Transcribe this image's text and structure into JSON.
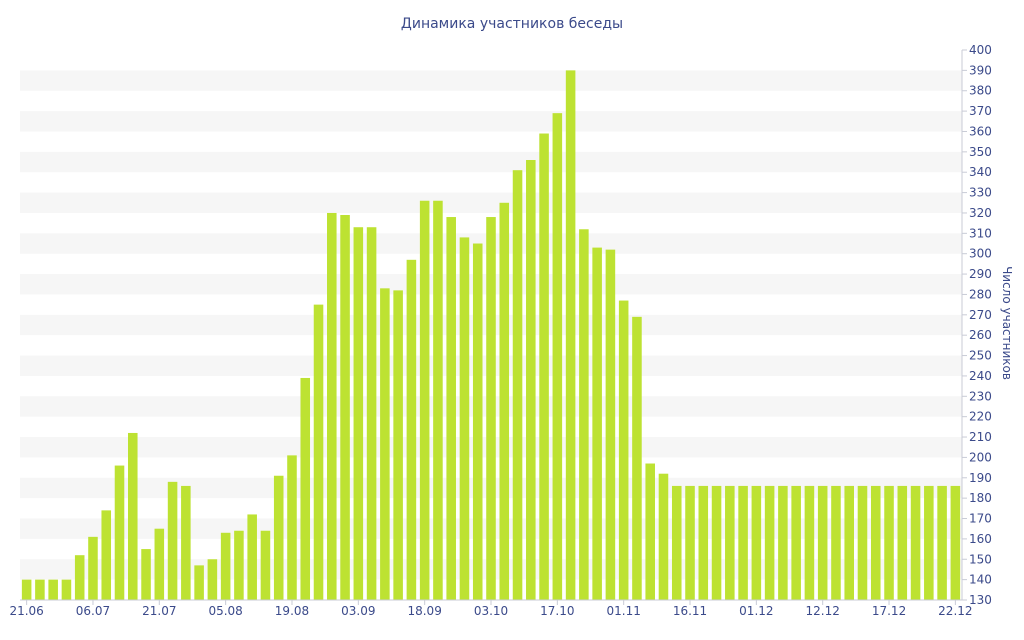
{
  "chart_data": {
    "type": "bar",
    "title": "Динамика участников беседы",
    "ylabel": "Число участников",
    "xlabel": "",
    "ylim": [
      130,
      400
    ],
    "yticks": [
      130,
      140,
      150,
      160,
      170,
      180,
      190,
      200,
      210,
      220,
      230,
      240,
      250,
      260,
      270,
      280,
      290,
      300,
      310,
      320,
      330,
      340,
      350,
      360,
      370,
      380,
      390,
      400
    ],
    "grid": "horizontal bands",
    "bar_color": "#bde232",
    "band_color": "#f6f6f6",
    "text_color": "#3b4a8a",
    "xtick_labels": [
      {
        "index": 0,
        "label": "21.06"
      },
      {
        "index": 5,
        "label": "06.07"
      },
      {
        "index": 10,
        "label": "21.07"
      },
      {
        "index": 15,
        "label": "05.08"
      },
      {
        "index": 20,
        "label": "19.08"
      },
      {
        "index": 25,
        "label": "03.09"
      },
      {
        "index": 30,
        "label": "18.09"
      },
      {
        "index": 35,
        "label": "03.10"
      },
      {
        "index": 40,
        "label": "17.10"
      },
      {
        "index": 45,
        "label": "01.11"
      },
      {
        "index": 50,
        "label": "16.11"
      },
      {
        "index": 55,
        "label": "01.12"
      },
      {
        "index": 60,
        "label": "12.12"
      },
      {
        "index": 65,
        "label": "17.12"
      },
      {
        "index": 70,
        "label": "22.12"
      }
    ],
    "values": [
      140,
      140,
      140,
      140,
      152,
      161,
      174,
      196,
      212,
      155,
      165,
      188,
      186,
      147,
      150,
      163,
      164,
      172,
      164,
      191,
      201,
      239,
      275,
      320,
      319,
      313,
      313,
      283,
      282,
      297,
      326,
      326,
      318,
      308,
      305,
      318,
      325,
      341,
      346,
      359,
      369,
      390,
      312,
      303,
      302,
      277,
      269,
      197,
      192,
      186,
      186,
      186,
      186,
      186,
      186,
      186,
      186,
      186,
      186,
      186,
      186,
      186,
      186,
      186,
      186,
      186,
      186,
      186,
      186,
      186,
      186
    ]
  }
}
